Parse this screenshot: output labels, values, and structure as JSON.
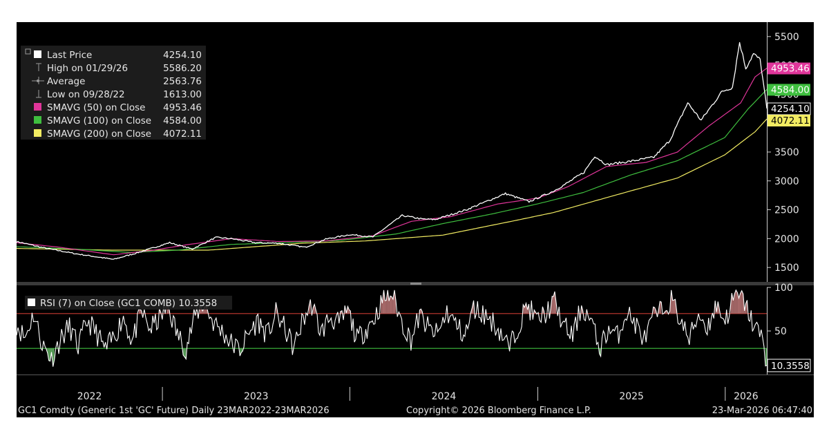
{
  "chart_data": [
    {
      "type": "line",
      "panel": "price",
      "ylim": [
        1250,
        5750
      ],
      "yticks": [
        1500,
        2000,
        2500,
        3000,
        3500,
        4000,
        4500,
        5000,
        5500
      ],
      "xlim": [
        "2022-03-23",
        "2026-03-23"
      ],
      "legend": [
        {
          "symbol": "square",
          "color": "#ffffff",
          "label": "Last Price",
          "value": "4254.10"
        },
        {
          "symbol": "high",
          "color": "#9a9a9a",
          "label": "High on 01/29/26",
          "value": "5586.20"
        },
        {
          "symbol": "avg",
          "color": "#9a9a9a",
          "label": "Average",
          "value": "2563.76"
        },
        {
          "symbol": "low",
          "color": "#9a9a9a",
          "label": "Low on 09/28/22",
          "value": "1613.00"
        },
        {
          "symbol": "square",
          "color": "#e0359a",
          "label": "SMAVG (50)  on Close",
          "value": "4953.46"
        },
        {
          "symbol": "square",
          "color": "#3fbf3f",
          "label": "SMAVG (100)  on Close",
          "value": "4584.00"
        },
        {
          "symbol": "square",
          "color": "#f2ec62",
          "label": "SMAVG (200)  on Close",
          "value": "4072.11"
        }
      ],
      "series": [
        {
          "name": "Last Price",
          "color": "#ffffff",
          "x": [
            "2022-03-23",
            "2022-05-15",
            "2022-07-15",
            "2022-09-28",
            "2022-11-15",
            "2023-01-15",
            "2023-02-28",
            "2023-04-15",
            "2023-05-15",
            "2023-07-01",
            "2023-08-15",
            "2023-10-06",
            "2023-11-15",
            "2024-01-01",
            "2024-02-15",
            "2024-04-12",
            "2024-05-20",
            "2024-06-15",
            "2024-08-15",
            "2024-10-30",
            "2024-12-15",
            "2025-01-31",
            "2025-02-25",
            "2025-04-01",
            "2025-04-22",
            "2025-05-15",
            "2025-07-01",
            "2025-08-15",
            "2025-09-15",
            "2025-10-20",
            "2025-11-15",
            "2025-12-26",
            "2026-01-15",
            "2026-01-29",
            "2026-02-10",
            "2026-02-25",
            "2026-03-10",
            "2026-03-23"
          ],
          "values": [
            1950,
            1840,
            1740,
            1640,
            1760,
            1930,
            1820,
            2020,
            2000,
            1930,
            1920,
            1850,
            1990,
            2070,
            2030,
            2400,
            2340,
            2330,
            2500,
            2780,
            2640,
            2820,
            2950,
            3150,
            3430,
            3280,
            3340,
            3410,
            3700,
            4350,
            4050,
            4550,
            4620,
            5400,
            4950,
            5200,
            5100,
            4254.1
          ]
        },
        {
          "name": "SMAVG (50)  on Close",
          "color": "#e0359a",
          "x": [
            "2022-03-23",
            "2022-06-15",
            "2022-09-28",
            "2022-12-15",
            "2023-02-15",
            "2023-05-15",
            "2023-08-15",
            "2023-11-15",
            "2024-02-15",
            "2024-04-30",
            "2024-07-15",
            "2024-10-15",
            "2024-12-31",
            "2025-03-01",
            "2025-05-15",
            "2025-07-31",
            "2025-09-30",
            "2025-11-30",
            "2026-01-31",
            "2026-02-28",
            "2026-03-23"
          ],
          "values": [
            1930,
            1850,
            1720,
            1800,
            1890,
            2000,
            1950,
            1960,
            2050,
            2300,
            2380,
            2600,
            2700,
            2900,
            3250,
            3320,
            3500,
            3950,
            4350,
            4800,
            4953.46
          ]
        },
        {
          "name": "SMAVG (100)  on Close",
          "color": "#3fbf3f",
          "x": [
            "2022-03-23",
            "2022-07-15",
            "2022-10-31",
            "2023-01-31",
            "2023-05-15",
            "2023-09-01",
            "2023-12-15",
            "2024-03-31",
            "2024-06-30",
            "2024-09-30",
            "2024-12-31",
            "2025-03-31",
            "2025-06-30",
            "2025-09-30",
            "2025-12-31",
            "2026-02-15",
            "2026-03-23"
          ],
          "values": [
            1860,
            1820,
            1760,
            1800,
            1900,
            1930,
            1970,
            2080,
            2260,
            2420,
            2600,
            2800,
            3100,
            3350,
            3750,
            4250,
            4584.0
          ]
        },
        {
          "name": "SMAVG (200)  on Close",
          "color": "#f2ec62",
          "x": [
            "2022-03-23",
            "2022-09-30",
            "2023-03-31",
            "2023-09-30",
            "2024-01-31",
            "2024-06-30",
            "2024-10-31",
            "2025-01-31",
            "2025-05-31",
            "2025-09-30",
            "2025-12-31",
            "2026-02-28",
            "2026-03-23"
          ],
          "values": [
            1830,
            1800,
            1800,
            1920,
            1960,
            2060,
            2280,
            2450,
            2750,
            3050,
            3450,
            3850,
            4072.11
          ]
        }
      ],
      "price_tags": [
        {
          "value": 4953.46,
          "label": "4953.46",
          "bg": "#e0359a",
          "fg": "#ffffff"
        },
        {
          "value": 4584.0,
          "label": "4584.00",
          "bg": "#3fbf3f",
          "fg": "#ffffff"
        },
        {
          "value": 4254.1,
          "label": "4254.10",
          "bg": "#000000",
          "fg": "#ffffff",
          "border": "#ffffff"
        },
        {
          "value": 4072.11,
          "label": "4072.11",
          "bg": "#f2ec62",
          "fg": "#000000"
        }
      ]
    },
    {
      "type": "line",
      "panel": "rsi",
      "ylim": [
        0,
        100
      ],
      "yticks": [
        50,
        100
      ],
      "overbought": 70,
      "oversold": 30,
      "legend": [
        {
          "symbol": "square",
          "color": "#ffffff",
          "label": "RSI (7)  on Close (GC1 COMB) 10.3558"
        }
      ],
      "series": [
        {
          "name": "RSI (7)  on Close (GC1 COMB) 10.3558",
          "color": "#ffffff",
          "x": [
            "2022-03-23",
            "2022-04-08",
            "2022-04-25",
            "2022-05-12",
            "2022-05-30",
            "2022-06-16",
            "2022-07-04",
            "2022-07-21",
            "2022-08-08",
            "2022-08-25",
            "2022-09-12",
            "2022-09-29",
            "2022-10-17",
            "2022-11-03",
            "2022-11-21",
            "2022-12-08",
            "2022-12-26",
            "2023-01-12",
            "2023-01-30",
            "2023-02-16",
            "2023-03-06",
            "2023-03-23",
            "2023-04-10",
            "2023-04-27",
            "2023-05-15",
            "2023-06-01",
            "2023-06-19",
            "2023-07-06",
            "2023-07-24",
            "2023-08-10",
            "2023-08-28",
            "2023-09-14",
            "2023-10-02",
            "2023-10-19",
            "2023-11-06",
            "2023-11-23",
            "2023-12-11",
            "2023-12-28",
            "2024-01-15",
            "2024-02-01",
            "2024-02-19",
            "2024-03-07",
            "2024-03-25",
            "2024-04-11",
            "2024-04-29",
            "2024-05-16",
            "2024-06-03",
            "2024-06-20",
            "2024-07-08",
            "2024-07-25",
            "2024-08-12",
            "2024-08-29",
            "2024-09-16",
            "2024-10-03",
            "2024-10-21",
            "2024-11-07",
            "2024-11-25",
            "2024-12-12",
            "2024-12-30",
            "2025-01-16",
            "2025-02-03",
            "2025-02-20",
            "2025-03-10",
            "2025-03-27",
            "2025-04-14",
            "2025-05-01",
            "2025-05-19",
            "2025-06-05",
            "2025-06-23",
            "2025-07-10",
            "2025-07-28",
            "2025-08-14",
            "2025-09-01",
            "2025-09-18",
            "2025-10-06",
            "2025-10-23",
            "2025-11-10",
            "2025-11-27",
            "2025-12-15",
            "2026-01-01",
            "2026-01-19",
            "2026-02-05",
            "2026-02-23",
            "2026-03-12",
            "2026-03-23"
          ],
          "values": [
            58,
            42,
            70,
            35,
            18,
            40,
            55,
            32,
            62,
            48,
            28,
            44,
            66,
            38,
            72,
            52,
            64,
            78,
            46,
            30,
            68,
            82,
            60,
            50,
            36,
            28,
            48,
            62,
            45,
            70,
            52,
            30,
            64,
            80,
            48,
            66,
            58,
            74,
            40,
            52,
            66,
            88,
            92,
            60,
            40,
            68,
            52,
            46,
            72,
            58,
            44,
            76,
            70,
            62,
            48,
            30,
            58,
            80,
            62,
            70,
            84,
            56,
            44,
            78,
            62,
            30,
            52,
            44,
            72,
            58,
            40,
            66,
            74,
            86,
            62,
            40,
            70,
            54,
            80,
            62,
            90,
            86,
            60,
            44,
            10.36
          ]
        }
      ]
    }
  ],
  "x_axis": {
    "year_labels": [
      "2022",
      "2023",
      "2024",
      "2025",
      "2026"
    ],
    "year_starts": [
      "2023-01-01",
      "2024-01-01",
      "2025-01-01",
      "2026-01-01"
    ]
  },
  "footer": {
    "left": "GC1 Comdty (Generic 1st 'GC' Future) Daily 23MAR2022-23MAR2026",
    "center": "Copyright© 2026 Bloomberg Finance L.P.",
    "right": "23-Mar-2026 06:47:40"
  }
}
